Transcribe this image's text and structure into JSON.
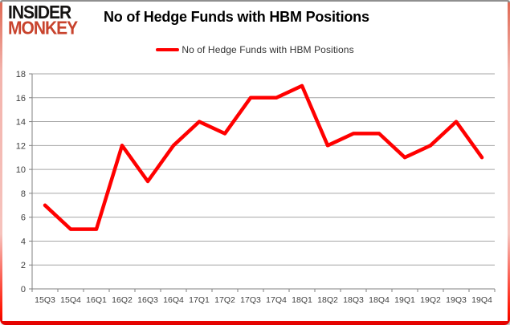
{
  "branding": {
    "line1": "INSIDER",
    "line2": "MONKEY",
    "logo_red": "#c8432d"
  },
  "header": {
    "title": "No of Hedge Funds with HBM Positions"
  },
  "legend": {
    "label": "No of Hedge Funds with HBM Positions",
    "swatch_color": "#ff0000"
  },
  "frame": {
    "border_red": "#ff0000",
    "border_top_gray": "#8f8f8f"
  },
  "chart_data": {
    "type": "line",
    "title": "No of Hedge Funds with HBM Positions",
    "series_name": "No of Hedge Funds with HBM Positions",
    "categories": [
      "15Q3",
      "15Q4",
      "16Q1",
      "16Q2",
      "16Q3",
      "16Q4",
      "17Q1",
      "17Q2",
      "17Q3",
      "17Q4",
      "18Q1",
      "18Q2",
      "18Q3",
      "18Q4",
      "19Q1",
      "19Q2",
      "19Q3",
      "19Q4"
    ],
    "values": [
      7,
      5,
      5,
      12,
      9,
      12,
      14,
      13,
      16,
      16,
      17,
      12,
      13,
      13,
      11,
      12,
      14,
      11
    ],
    "ylim": [
      0,
      18
    ],
    "ytick_step": 2,
    "grid": "horizontal",
    "legend_position": "top-center",
    "line_color": "#ff0000",
    "grid_color": "#a6a6a6",
    "axis_color": "#808080",
    "tick_text_color": "#404040"
  }
}
